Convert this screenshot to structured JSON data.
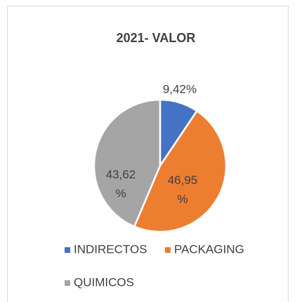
{
  "chart_data": {
    "type": "pie",
    "title": "2021- VALOR",
    "categories": [
      "INDIRECTOS",
      "PACKAGING",
      "QUIMICOS"
    ],
    "values": [
      9.42,
      46.95,
      43.62
    ],
    "value_labels": [
      "9,42%",
      "46,95 %",
      "43,62 %"
    ],
    "colors": [
      "#4472c4",
      "#ed7d31",
      "#a5a5a5"
    ],
    "legend": "bottom"
  }
}
